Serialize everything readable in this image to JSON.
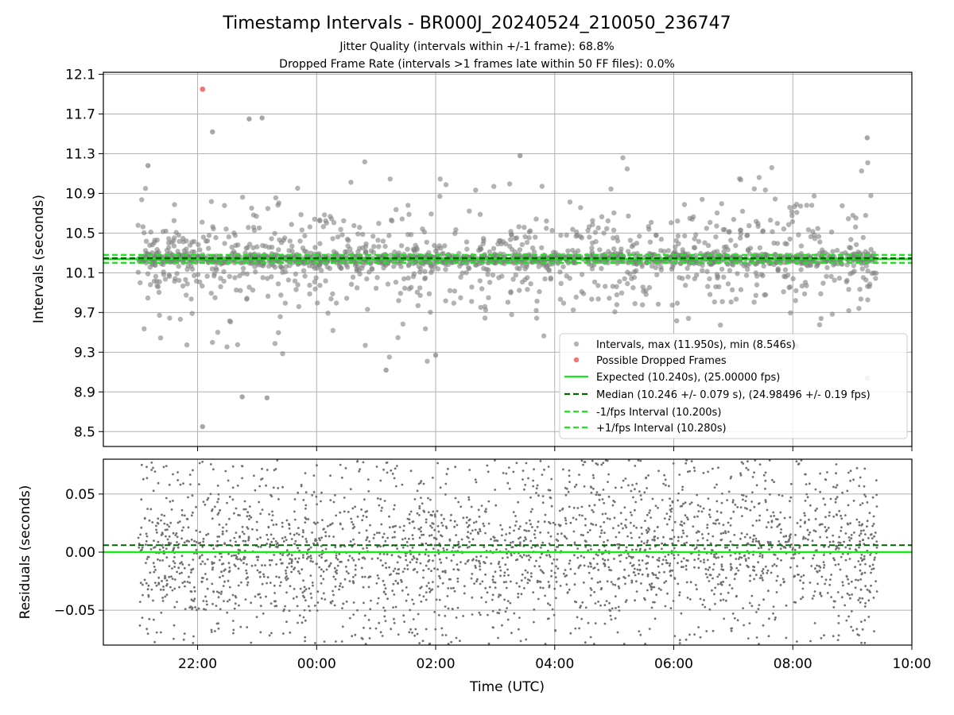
{
  "figure": {
    "title": "Timestamp Intervals - BR000J_20240524_210050_236747",
    "subtitle_1": "Jitter Quality (intervals within +/-1 frame): 68.8%",
    "subtitle_2": "Dropped Frame Rate (intervals >1 frames late within 50 FF files): 0.0%"
  },
  "colors": {
    "intervals": "#808080",
    "dropped": "#f05a5a",
    "expected": "#1ee61e",
    "median": "#006400",
    "fps_band": "#1ee61e",
    "residuals": "#707070",
    "grid": "#b0b0b0"
  },
  "chart_data": [
    {
      "type": "scatter",
      "panel": "intervals",
      "ylabel": "Intervals (seconds)",
      "ylim": [
        8.35,
        12.12
      ],
      "yticks": [
        8.5,
        8.9,
        9.3,
        9.7,
        10.1,
        10.5,
        10.9,
        11.3,
        11.7,
        12.1
      ],
      "ytick_labels": [
        "8.5",
        "8.9",
        "9.3",
        "9.7",
        "10.1",
        "10.5",
        "10.9",
        "11.3",
        "11.7",
        "12.1"
      ],
      "xlim": [
        "20:25",
        "10:00"
      ],
      "grid": true,
      "legend_position": "lower-right",
      "series": [
        {
          "name": "Intervals, max (11.950s), min (8.546s)",
          "marker": "dot",
          "max": 11.95,
          "min": 8.546,
          "x_range": [
            "21:00",
            "09:25"
          ],
          "count_approx": 2100,
          "notable_points": [
            {
              "x": "21:10",
              "y": 11.18
            },
            {
              "x": "22:05",
              "y": 8.55
            },
            {
              "x": "22:15",
              "y": 11.52
            },
            {
              "x": "22:45",
              "y": 8.85
            },
            {
              "x": "22:52",
              "y": 11.65
            },
            {
              "x": "23:05",
              "y": 11.66
            },
            {
              "x": "23:10",
              "y": 8.84
            },
            {
              "x": "01:10",
              "y": 9.12
            },
            {
              "x": "02:00",
              "y": 9.27
            },
            {
              "x": "03:25",
              "y": 11.28
            },
            {
              "x": "09:15",
              "y": 11.46
            },
            {
              "x": "09:15",
              "y": 9.04
            }
          ]
        },
        {
          "name": "Possible Dropped Frames",
          "marker": "dot",
          "points": [
            {
              "x": "22:05",
              "y": 11.95
            }
          ]
        },
        {
          "name": "Expected (10.240s), (25.00000 fps)",
          "line": "solid",
          "y": 10.24
        },
        {
          "name": "Median (10.246 +/- 0.079 s), (24.98496 +/- 0.19 fps)",
          "line": "dashed",
          "y": 10.246
        },
        {
          "name": "-1/fps Interval (10.200s)",
          "line": "dashed",
          "y": 10.2
        },
        {
          "name": "+1/fps Interval (10.280s)",
          "line": "dashed",
          "y": 10.28
        }
      ]
    },
    {
      "type": "scatter",
      "panel": "residuals",
      "ylabel": "Residuals (seconds)",
      "xlabel": "Time (UTC)",
      "ylim": [
        -0.08,
        0.08
      ],
      "yticks": [
        -0.05,
        0.0,
        0.05
      ],
      "ytick_labels": [
        "−0.05",
        "0.00",
        "0.05"
      ],
      "xlim": [
        "20:25",
        "10:00"
      ],
      "xticks": [
        "22:00",
        "00:00",
        "02:00",
        "04:00",
        "06:00",
        "08:00",
        "10:00"
      ],
      "grid": true,
      "series": [
        {
          "marker": "dot",
          "x_range": [
            "21:00",
            "09:25"
          ],
          "spread": 0.08,
          "count_approx": 2700
        },
        {
          "line": "solid",
          "y": 0.0
        },
        {
          "line": "dashed",
          "y": 0.006
        }
      ]
    }
  ]
}
